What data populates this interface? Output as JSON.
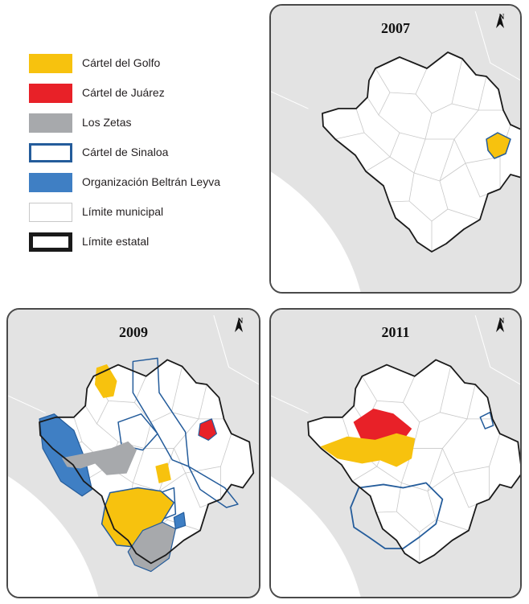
{
  "legend": {
    "items": [
      {
        "label": "Cártel del Golfo",
        "fill": "#f7c20e",
        "stroke": "#f7c20e",
        "style": "fill"
      },
      {
        "label": "Cártel de Juárez",
        "fill": "#e82128",
        "stroke": "#e82128",
        "style": "fill"
      },
      {
        "label": "Los Zetas",
        "fill": "#a7a9ac",
        "stroke": "#a7a9ac",
        "style": "fill"
      },
      {
        "label": "Cártel de Sinaloa",
        "fill": "#ffffff",
        "stroke": "#245c9b",
        "style": "outline"
      },
      {
        "label": "Organización Beltrán Leyva",
        "fill": "#3f7fc4",
        "stroke": "#3f7fc4",
        "style": "fill"
      },
      {
        "label": "Límite municipal",
        "fill": "#ffffff",
        "stroke": "#c8c8c8",
        "style": "thin"
      },
      {
        "label": "Límite estatal",
        "fill": "#ffffff",
        "stroke": "#1a1a1a",
        "style": "thick"
      }
    ]
  },
  "maps": [
    {
      "year": "2007",
      "north": "N"
    },
    {
      "year": "2009",
      "north": "N"
    },
    {
      "year": "2011",
      "north": "N"
    }
  ],
  "colors": {
    "land": "#e3e3e3",
    "sea": "#ffffff",
    "state_fill": "#ffffff",
    "state_border": "#1a1a1a",
    "municipal_border": "#c8c8c8",
    "golfo": "#f7c20e",
    "juarez": "#e82128",
    "zetas": "#a7a9ac",
    "sinaloa": "#245c9b",
    "beltran": "#3f7fc4"
  }
}
